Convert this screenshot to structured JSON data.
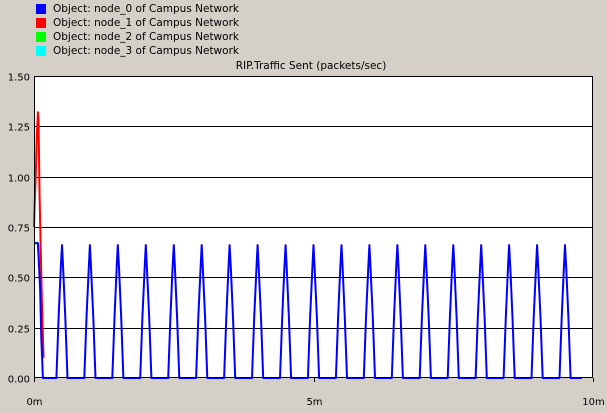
{
  "legend": [
    {
      "label": "Object: node_0 of Campus Network",
      "color": "#0000ff"
    },
    {
      "label": "Object: node_1 of Campus Network",
      "color": "#ff0000"
    },
    {
      "label": "Object: node_2 of Campus Network",
      "color": "#00ff00"
    },
    {
      "label": "Object: node_3 of Campus Network",
      "color": "#00ffff"
    }
  ],
  "chart_data": {
    "type": "line",
    "title": "RIP.Traffic Sent (packets/sec)",
    "xlabel": "",
    "ylabel": "",
    "xlim": [
      0,
      10
    ],
    "ylim": [
      0,
      1.5
    ],
    "x_ticks": [
      {
        "value": 0,
        "label": "0m"
      },
      {
        "value": 5,
        "label": "5m"
      },
      {
        "value": 10,
        "label": "10m"
      }
    ],
    "y_ticks": [
      {
        "value": 0,
        "label": "0.00"
      },
      {
        "value": 0.25,
        "label": "0.25"
      },
      {
        "value": 0.5,
        "label": "0.50"
      },
      {
        "value": 0.75,
        "label": "0.75"
      },
      {
        "value": 1.0,
        "label": "1.00"
      },
      {
        "value": 1.25,
        "label": "1.25"
      },
      {
        "value": 1.5,
        "label": "1.50"
      }
    ],
    "grid": true,
    "background": "#ffffff",
    "series": [
      {
        "name": "Object: node_3 of Campus Network",
        "color": "#00ffff",
        "x": [
          0,
          0.07,
          0.12,
          0.15,
          0.17
        ],
        "y": [
          0.67,
          0.67,
          0.5,
          0.25,
          0.1
        ]
      },
      {
        "name": "Object: node_2 of Campus Network",
        "color": "#00ff00",
        "x": [
          0,
          0.07,
          0.12,
          0.15,
          0.17
        ],
        "y": [
          0.67,
          0.67,
          0.5,
          0.25,
          0.1
        ]
      },
      {
        "name": "Object: node_1 of Campus Network",
        "color": "#ff0000",
        "x": [
          0,
          0.01,
          0.03,
          0.05,
          0.07,
          0.08,
          0.1,
          0.12,
          0.14,
          0.16,
          0.17
        ],
        "y": [
          0.75,
          0.85,
          1.0,
          1.2,
          1.32,
          1.28,
          0.9,
          0.65,
          0.4,
          0.2,
          0.1
        ]
      },
      {
        "name": "Object: node_0 of Campus Network",
        "color": "#0000ff",
        "x": [
          0,
          0.07,
          0.11,
          0.13,
          0.16,
          0.18,
          0.2,
          0.4,
          0.44,
          0.48,
          0.5,
          0.52,
          0.56,
          0.6,
          0.9,
          0.94,
          0.98,
          1.0,
          1.02,
          1.06,
          1.1,
          1.4,
          1.44,
          1.48,
          1.5,
          1.52,
          1.56,
          1.6,
          1.9,
          1.94,
          1.98,
          2.0,
          2.02,
          2.06,
          2.1,
          2.4,
          2.44,
          2.48,
          2.5,
          2.52,
          2.56,
          2.6,
          2.9,
          2.94,
          2.98,
          3.0,
          3.02,
          3.06,
          3.1,
          3.4,
          3.44,
          3.48,
          3.5,
          3.52,
          3.56,
          3.6,
          3.9,
          3.94,
          3.98,
          4.0,
          4.02,
          4.06,
          4.1,
          4.4,
          4.44,
          4.48,
          4.5,
          4.52,
          4.56,
          4.6,
          4.9,
          4.94,
          4.98,
          5.0,
          5.02,
          5.06,
          5.1,
          5.4,
          5.44,
          5.48,
          5.5,
          5.52,
          5.56,
          5.6,
          5.9,
          5.94,
          5.98,
          6.0,
          6.02,
          6.06,
          6.1,
          6.4,
          6.44,
          6.48,
          6.5,
          6.52,
          6.56,
          6.6,
          6.9,
          6.94,
          6.98,
          7.0,
          7.02,
          7.06,
          7.1,
          7.4,
          7.44,
          7.48,
          7.5,
          7.52,
          7.56,
          7.6,
          7.9,
          7.94,
          7.98,
          8.0,
          8.02,
          8.06,
          8.1,
          8.4,
          8.44,
          8.48,
          8.5,
          8.52,
          8.56,
          8.6,
          8.9,
          8.94,
          8.98,
          9.0,
          9.02,
          9.06,
          9.1,
          9.4,
          9.44,
          9.48,
          9.5,
          9.52,
          9.56,
          9.6,
          9.8
        ],
        "y": [
          0.67,
          0.67,
          0.45,
          0.2,
          0.0,
          0.0,
          0.0,
          0.0,
          0.3,
          0.55,
          0.66,
          0.55,
          0.3,
          0.0,
          0.0,
          0.3,
          0.55,
          0.66,
          0.55,
          0.3,
          0.0,
          0.0,
          0.3,
          0.55,
          0.66,
          0.55,
          0.3,
          0.0,
          0.0,
          0.3,
          0.55,
          0.66,
          0.55,
          0.3,
          0.0,
          0.0,
          0.3,
          0.55,
          0.66,
          0.55,
          0.3,
          0.0,
          0.0,
          0.3,
          0.55,
          0.66,
          0.55,
          0.3,
          0.0,
          0.0,
          0.3,
          0.55,
          0.66,
          0.55,
          0.3,
          0.0,
          0.0,
          0.3,
          0.55,
          0.66,
          0.55,
          0.3,
          0.0,
          0.0,
          0.3,
          0.55,
          0.66,
          0.55,
          0.3,
          0.0,
          0.0,
          0.3,
          0.55,
          0.66,
          0.55,
          0.3,
          0.0,
          0.0,
          0.3,
          0.55,
          0.66,
          0.55,
          0.3,
          0.0,
          0.0,
          0.3,
          0.55,
          0.66,
          0.55,
          0.3,
          0.0,
          0.0,
          0.3,
          0.55,
          0.66,
          0.55,
          0.3,
          0.0,
          0.0,
          0.3,
          0.55,
          0.66,
          0.55,
          0.3,
          0.0,
          0.0,
          0.3,
          0.55,
          0.66,
          0.55,
          0.3,
          0.0,
          0.0,
          0.3,
          0.55,
          0.66,
          0.55,
          0.3,
          0.0,
          0.0,
          0.3,
          0.55,
          0.66,
          0.55,
          0.3,
          0.0,
          0.0,
          0.3,
          0.55,
          0.66,
          0.55,
          0.3,
          0.0,
          0.0,
          0.3,
          0.55,
          0.66,
          0.55,
          0.3,
          0.0,
          0.0
        ]
      }
    ]
  }
}
